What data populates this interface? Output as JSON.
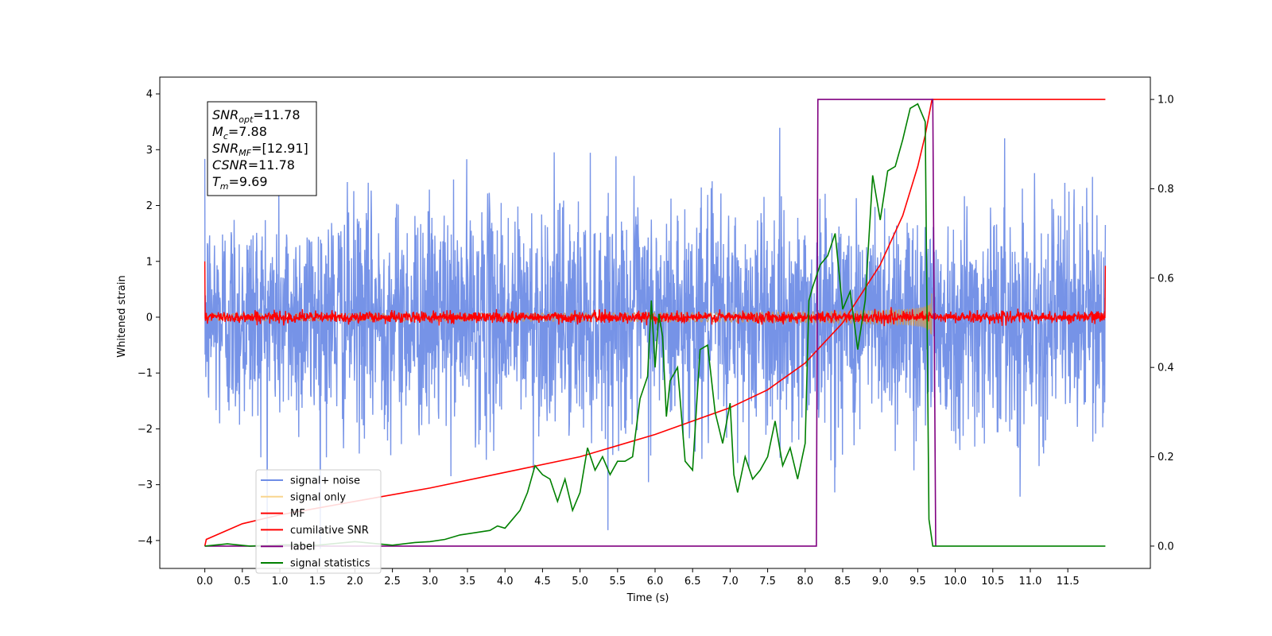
{
  "chart_data": {
    "type": "line",
    "xlabel": "Time (s)",
    "ylabel": "Whitened strain",
    "xlim": [
      -0.6,
      12.6
    ],
    "ylim": [
      -4.5,
      4.3
    ],
    "y2lim": [
      -0.05,
      1.05
    ],
    "xticks": [
      "0.0",
      "0.5",
      "1.0",
      "1.5",
      "2.0",
      "2.5",
      "3.0",
      "3.5",
      "4.0",
      "4.5",
      "5.0",
      "5.5",
      "6.0",
      "6.5",
      "7.0",
      "7.5",
      "8.0",
      "8.5",
      "9.0",
      "9.5",
      "10.0",
      "10.5",
      "11.0",
      "11.5"
    ],
    "yticks": [
      "4",
      "3",
      "2",
      "1",
      "0",
      "−1",
      "−2",
      "−3",
      "−4"
    ],
    "y2ticks": [
      "1.0",
      "0.8",
      "0.6",
      "0.4",
      "0.2",
      "0.0"
    ],
    "legend_position": "lower-left",
    "stats": [
      {
        "base": "SNR",
        "sub": "opt",
        "value": "=11.78"
      },
      {
        "base": "M",
        "sub": "c",
        "value": "=7.88"
      },
      {
        "base": "SNR",
        "sub": "MF",
        "value": "=[12.91]"
      },
      {
        "base": "CSNR",
        "sub": "",
        "value": "=11.78"
      },
      {
        "base": "T",
        "sub": "m",
        "value": "=9.69"
      }
    ],
    "series": [
      {
        "name": "signal+ noise",
        "color": "#6f8de6",
        "axis": "left",
        "kind": "noise",
        "std": 1.0,
        "x_range": [
          0.0,
          12.0
        ]
      },
      {
        "name": "signal only",
        "color": "#f5c96b",
        "axis": "left",
        "kind": "chirp",
        "x_range": [
          0.0,
          9.69
        ],
        "peak_amplitude": 1.1
      },
      {
        "name": "MF",
        "color": "#ff0000",
        "axis": "left",
        "kind": "noise",
        "std": 0.05,
        "x_range": [
          0.0,
          12.0
        ],
        "edge_values": [
          1.0,
          0.92
        ]
      },
      {
        "name": "cumilative SNR",
        "color": "#ff0000",
        "axis": "right",
        "x": [
          0.0,
          0.02,
          0.5,
          1.0,
          2.0,
          3.0,
          4.0,
          5.0,
          6.0,
          6.5,
          7.0,
          7.5,
          8.0,
          8.5,
          9.0,
          9.3,
          9.5,
          9.6,
          9.69,
          12.0
        ],
        "values": [
          0.0,
          0.015,
          0.05,
          0.07,
          0.1,
          0.13,
          0.165,
          0.2,
          0.25,
          0.28,
          0.31,
          0.35,
          0.41,
          0.5,
          0.63,
          0.74,
          0.85,
          0.92,
          1.0,
          1.0
        ]
      },
      {
        "name": "label",
        "color": "#800080",
        "axis": "right",
        "x": [
          0.0,
          8.15,
          8.17,
          9.7,
          9.74
        ],
        "values": [
          0.0,
          0.0,
          1.0,
          1.0,
          0.0
        ]
      },
      {
        "name": "signal statistics",
        "color": "#008000",
        "axis": "right",
        "x": [
          0.0,
          0.3,
          0.6,
          1.0,
          1.5,
          2.0,
          2.5,
          2.8,
          3.0,
          3.2,
          3.4,
          3.6,
          3.8,
          3.9,
          4.0,
          4.1,
          4.2,
          4.3,
          4.4,
          4.5,
          4.6,
          4.7,
          4.8,
          4.9,
          5.0,
          5.1,
          5.2,
          5.3,
          5.4,
          5.5,
          5.6,
          5.7,
          5.8,
          5.9,
          5.95,
          6.0,
          6.05,
          6.1,
          6.15,
          6.2,
          6.3,
          6.4,
          6.5,
          6.6,
          6.7,
          6.8,
          6.9,
          7.0,
          7.05,
          7.1,
          7.2,
          7.3,
          7.4,
          7.5,
          7.6,
          7.7,
          7.8,
          7.9,
          8.0,
          8.05,
          8.1,
          8.2,
          8.3,
          8.4,
          8.5,
          8.6,
          8.7,
          8.8,
          8.9,
          9.0,
          9.1,
          9.2,
          9.3,
          9.4,
          9.5,
          9.6,
          9.65,
          9.7,
          12.0
        ],
        "values": [
          0.0,
          0.005,
          0.0,
          0.003,
          0.002,
          0.01,
          0.002,
          0.008,
          0.01,
          0.015,
          0.025,
          0.03,
          0.035,
          0.045,
          0.04,
          0.06,
          0.08,
          0.12,
          0.18,
          0.16,
          0.15,
          0.1,
          0.15,
          0.08,
          0.12,
          0.22,
          0.17,
          0.2,
          0.16,
          0.19,
          0.19,
          0.2,
          0.33,
          0.38,
          0.55,
          0.4,
          0.52,
          0.47,
          0.29,
          0.37,
          0.4,
          0.19,
          0.17,
          0.44,
          0.45,
          0.3,
          0.23,
          0.32,
          0.16,
          0.12,
          0.2,
          0.15,
          0.17,
          0.2,
          0.28,
          0.18,
          0.22,
          0.15,
          0.23,
          0.55,
          0.58,
          0.63,
          0.65,
          0.7,
          0.53,
          0.57,
          0.44,
          0.55,
          0.83,
          0.73,
          0.84,
          0.85,
          0.91,
          0.98,
          0.99,
          0.95,
          0.06,
          0.0,
          0.0
        ]
      }
    ]
  }
}
